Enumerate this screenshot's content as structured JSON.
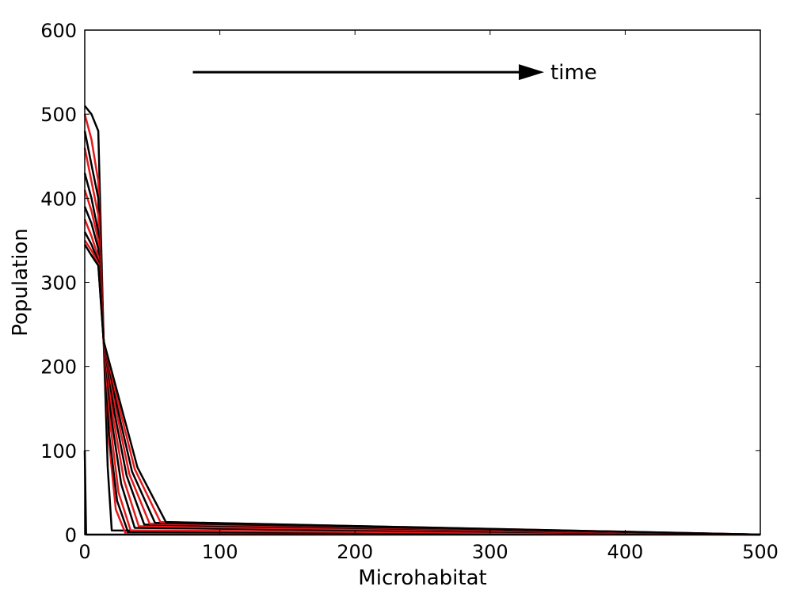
{
  "chart_data": {
    "type": "line",
    "title": "",
    "xlabel": "Microhabitat",
    "ylabel": "Population",
    "xlim": [
      0,
      500
    ],
    "ylim": [
      0,
      600
    ],
    "x_ticks": [
      0,
      100,
      200,
      300,
      400,
      500
    ],
    "y_ticks": [
      0,
      100,
      200,
      300,
      400,
      500,
      600
    ],
    "x_tick_labels": [
      "0",
      "100",
      "200",
      "300",
      "400",
      "500"
    ],
    "y_tick_labels": [
      "0",
      "100",
      "200",
      "300",
      "400",
      "500",
      "600"
    ],
    "grid": false,
    "legend": "none",
    "annotation": {
      "text": "time",
      "arrow_from": [
        80,
        550
      ],
      "arrow_to": [
        340,
        550
      ]
    },
    "series_colors": {
      "profiles": "#000000",
      "intermediate": "#e41a1c"
    },
    "series": [
      {
        "color": "#000000",
        "x": [
          0,
          1,
          2,
          500
        ],
        "y": [
          100,
          0,
          0,
          0
        ]
      },
      {
        "color": "#000000",
        "x": [
          0,
          5,
          10,
          14,
          17,
          20,
          500
        ],
        "y": [
          510,
          500,
          480,
          230,
          80,
          5,
          0
        ]
      },
      {
        "color": "#e41a1c",
        "x": [
          0,
          5,
          10,
          14,
          18,
          23,
          30,
          500
        ],
        "y": [
          500,
          470,
          420,
          230,
          110,
          30,
          2,
          0
        ]
      },
      {
        "color": "#000000",
        "x": [
          0,
          5,
          10,
          14,
          18,
          24,
          32,
          500
        ],
        "y": [
          480,
          440,
          400,
          230,
          120,
          40,
          3,
          0
        ]
      },
      {
        "color": "#e41a1c",
        "x": [
          0,
          5,
          10,
          14,
          19,
          25,
          34,
          500
        ],
        "y": [
          460,
          420,
          380,
          230,
          130,
          50,
          5,
          0
        ]
      },
      {
        "color": "#000000",
        "x": [
          0,
          5,
          10,
          14,
          20,
          27,
          37,
          500
        ],
        "y": [
          430,
          400,
          360,
          230,
          135,
          60,
          8,
          0
        ]
      },
      {
        "color": "#e41a1c",
        "x": [
          0,
          5,
          10,
          14,
          21,
          29,
          40,
          500
        ],
        "y": [
          410,
          385,
          350,
          230,
          140,
          65,
          10,
          0
        ]
      },
      {
        "color": "#000000",
        "x": [
          0,
          5,
          10,
          14,
          22,
          31,
          44,
          500
        ],
        "y": [
          390,
          370,
          340,
          230,
          145,
          70,
          12,
          0
        ]
      },
      {
        "color": "#e41a1c",
        "x": [
          0,
          5,
          10,
          14,
          23,
          33,
          48,
          500
        ],
        "y": [
          375,
          355,
          330,
          230,
          150,
          72,
          13,
          0
        ]
      },
      {
        "color": "#000000",
        "x": [
          0,
          5,
          10,
          14,
          24,
          35,
          52,
          500
        ],
        "y": [
          360,
          345,
          325,
          230,
          152,
          75,
          14,
          0
        ]
      },
      {
        "color": "#e41a1c",
        "x": [
          0,
          5,
          10,
          14,
          25,
          37,
          56,
          500
        ],
        "y": [
          350,
          338,
          322,
          230,
          155,
          78,
          15,
          0
        ]
      },
      {
        "color": "#000000",
        "x": [
          0,
          5,
          10,
          14,
          26,
          39,
          60,
          500
        ],
        "y": [
          345,
          332,
          320,
          230,
          158,
          80,
          15,
          0
        ]
      }
    ]
  }
}
